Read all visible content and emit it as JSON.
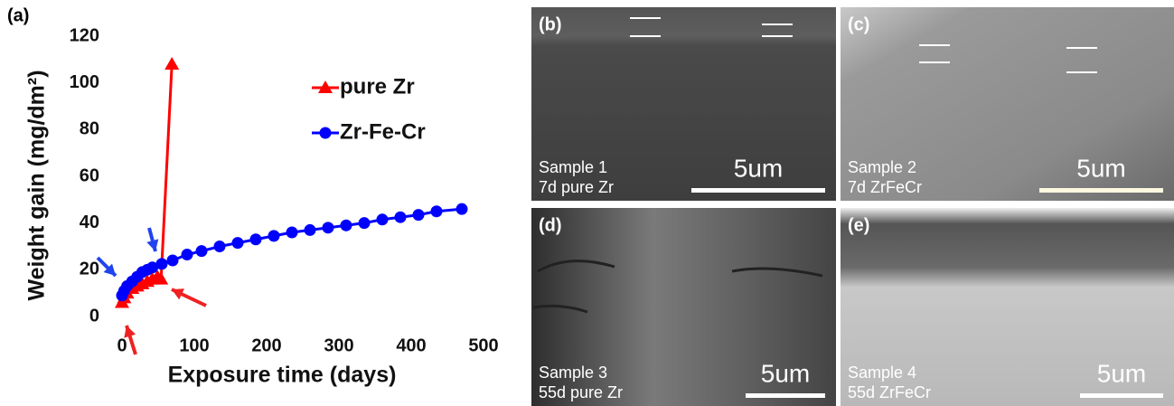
{
  "chart_data": {
    "type": "line",
    "panel_label": "(a)",
    "x_label": "Exposure time (days)",
    "y_label": "Weight gain (mg/dm²)",
    "xlim": [
      0,
      500
    ],
    "xticks": [
      0,
      100,
      200,
      300,
      400,
      500
    ],
    "ylim": [
      0,
      120
    ],
    "yticks": [
      0,
      20,
      40,
      60,
      80,
      100,
      120
    ],
    "grid": false,
    "legend": "top-right",
    "series": [
      {
        "name": "pure Zr",
        "color": "#ff0000",
        "marker": "triangle",
        "x": [
          0,
          3,
          7,
          14,
          21,
          28,
          35,
          42,
          49,
          54,
          69
        ],
        "values": [
          6,
          8,
          10,
          12,
          13,
          14,
          15,
          16,
          17,
          16,
          108
        ]
      },
      {
        "name": "Zr-Fe-Cr",
        "color": "#0000ff",
        "marker": "circle",
        "x": [
          0,
          3,
          7,
          14,
          21,
          28,
          35,
          42,
          55,
          70,
          90,
          110,
          135,
          160,
          185,
          210,
          235,
          260,
          285,
          310,
          335,
          360,
          385,
          410,
          435,
          470
        ],
        "values": [
          9,
          11,
          13,
          15,
          17,
          19,
          20,
          21,
          22.5,
          24,
          26.5,
          28,
          30,
          31.5,
          33,
          34.5,
          36,
          37,
          38,
          39,
          40,
          41.5,
          42.5,
          43.5,
          45,
          46
        ]
      }
    ]
  },
  "panels": [
    {
      "label": "(b)",
      "caption": [
        "Sample 1",
        "7d pure Zr"
      ],
      "scale": "5um"
    },
    {
      "label": "(c)",
      "caption": [
        "Sample 2",
        "7d ZrFeCr"
      ],
      "scale": "5um"
    },
    {
      "label": "(d)",
      "caption": [
        "Sample 3",
        "55d pure Zr"
      ],
      "scale": "5um"
    },
    {
      "label": "(e)",
      "caption": [
        "Sample 4",
        "55d ZrFeCr"
      ],
      "scale": "5um"
    }
  ]
}
